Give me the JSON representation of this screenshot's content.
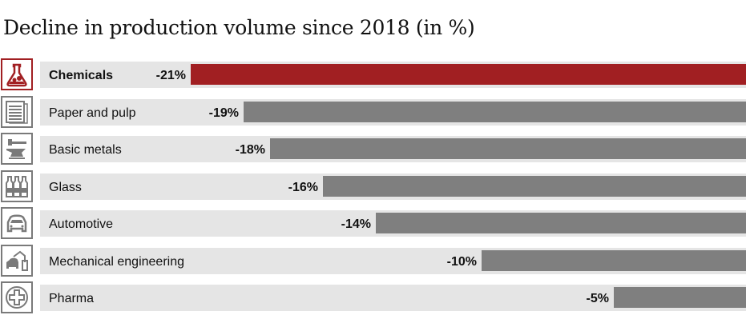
{
  "title": "Decline in production volume since 2018 (in %)",
  "colors": {
    "highlight": "#a11f22",
    "default_bar": "#7f7f7f",
    "row_band": "#e5e5e5",
    "icon_border": "#7a7a7a"
  },
  "rows": [
    {
      "label": "Chemicals",
      "value_label": "-21%",
      "value": -21,
      "icon": "flask-icon",
      "highlight": true
    },
    {
      "label": "Paper and pulp",
      "value_label": "-19%",
      "value": -19,
      "icon": "paper-stack-icon",
      "highlight": false
    },
    {
      "label": "Basic metals",
      "value_label": "-18%",
      "value": -18,
      "icon": "anvil-hammer-icon",
      "highlight": false
    },
    {
      "label": "Glass",
      "value_label": "-16%",
      "value": -16,
      "icon": "bottles-icon",
      "highlight": false
    },
    {
      "label": "Automotive",
      "value_label": "-14%",
      "value": -14,
      "icon": "car-icon",
      "highlight": false
    },
    {
      "label": "Mechanical engineering",
      "value_label": "-10%",
      "value": -10,
      "icon": "robot-arm-icon",
      "highlight": false
    },
    {
      "label": "Pharma",
      "value_label": "-5%",
      "value": -5,
      "icon": "medical-cross-icon",
      "highlight": false
    }
  ],
  "chart_data": {
    "type": "bar",
    "orientation": "horizontal",
    "title": "Decline in production volume since 2018 (in %)",
    "categories": [
      "Chemicals",
      "Paper and pulp",
      "Basic metals",
      "Glass",
      "Automotive",
      "Mechanical engineering",
      "Pharma"
    ],
    "values": [
      -21,
      -19,
      -18,
      -16,
      -14,
      -10,
      -5
    ],
    "data_labels": [
      "-21%",
      "-19%",
      "-18%",
      "-16%",
      "-14%",
      "-10%",
      "-5%"
    ],
    "highlighted_category": "Chemicals",
    "xlabel": "",
    "ylabel": "",
    "xlim": [
      -21,
      0
    ],
    "grid": false,
    "legend": "none",
    "bars_anchored": "right"
  }
}
